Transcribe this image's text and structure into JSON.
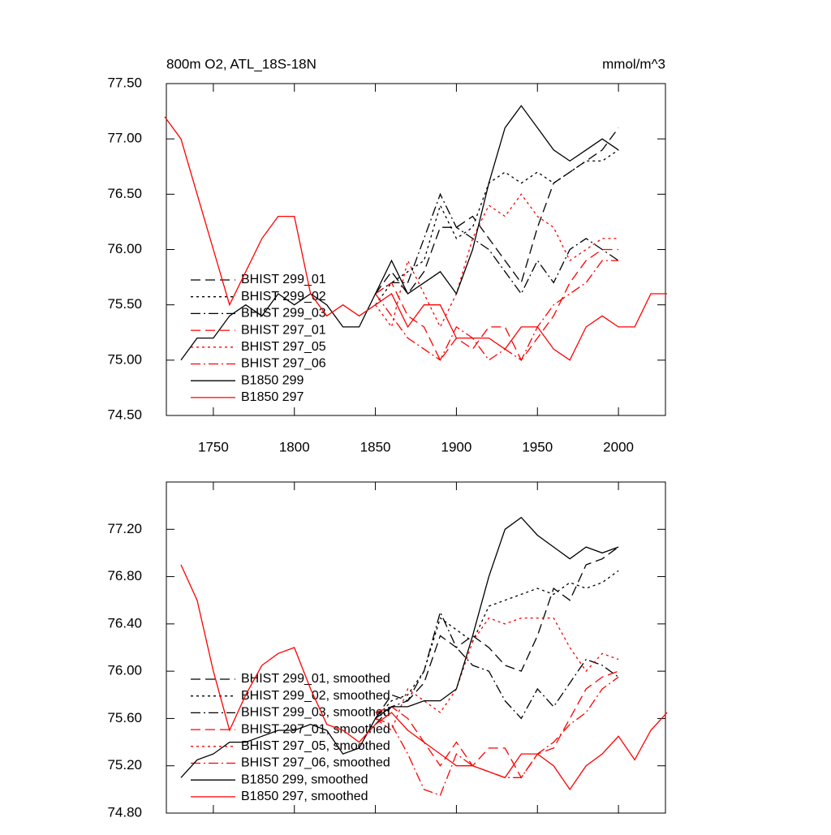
{
  "chart_data": [
    {
      "type": "line",
      "title": "800m O2, ATL_18S-18N",
      "units": "mmol/m^3",
      "x": [
        1720,
        1730,
        1740,
        1750,
        1760,
        1770,
        1780,
        1790,
        1800,
        1810,
        1820,
        1830,
        1840,
        1850,
        1860,
        1870,
        1880,
        1890,
        1900,
        1910,
        1920,
        1930,
        1940,
        1950,
        1960,
        1970,
        1980,
        1990,
        2000,
        2010,
        2020,
        2030
      ],
      "xlim": [
        1721,
        2029
      ],
      "xticks": [
        1750,
        1800,
        1850,
        1900,
        1950,
        2000
      ],
      "ylim": [
        74.5,
        77.5
      ],
      "yticks": [
        {
          "value": 74.5,
          "label": "74.50"
        },
        {
          "value": 75,
          "label": "75.00"
        },
        {
          "value": 75.5,
          "label": "75.50"
        },
        {
          "value": 76,
          "label": "76.00"
        },
        {
          "value": 76.5,
          "label": "76.50"
        },
        {
          "value": 77,
          "label": "77.00"
        },
        {
          "value": 77.5,
          "label": "77.50"
        }
      ],
      "series": [
        {
          "name": "BHIST 299_01",
          "color": "#000000",
          "style": "dashed",
          "values": [
            null,
            null,
            null,
            null,
            null,
            null,
            null,
            null,
            null,
            null,
            null,
            null,
            null,
            75.6,
            75.8,
            75.6,
            75.8,
            76.2,
            76.2,
            76.3,
            76.1,
            75.9,
            75.7,
            76.2,
            76.6,
            76.7,
            76.8,
            76.9,
            77.1,
            null,
            null,
            null
          ]
        },
        {
          "name": "BHIST 299_02",
          "color": "#000000",
          "style": "dotted",
          "values": [
            null,
            null,
            null,
            null,
            null,
            null,
            null,
            null,
            null,
            null,
            null,
            null,
            null,
            75.5,
            75.7,
            75.8,
            75.9,
            76.4,
            76.1,
            76.2,
            76.6,
            76.7,
            76.6,
            76.7,
            76.6,
            76.7,
            76.8,
            76.8,
            76.9,
            null,
            null,
            null
          ]
        },
        {
          "name": "BHIST 299_03",
          "color": "#000000",
          "style": "dashdot",
          "values": [
            null,
            null,
            null,
            null,
            null,
            null,
            null,
            null,
            null,
            null,
            null,
            null,
            null,
            75.6,
            75.7,
            75.7,
            76.1,
            76.5,
            76.2,
            76.1,
            76.0,
            75.8,
            75.6,
            75.9,
            75.7,
            76.0,
            76.1,
            76.0,
            75.9,
            null,
            null,
            null
          ]
        },
        {
          "name": "BHIST 297_01",
          "color": "#ff0000",
          "style": "dashed",
          "values": [
            null,
            null,
            null,
            null,
            null,
            null,
            null,
            null,
            null,
            null,
            null,
            null,
            null,
            75.6,
            75.7,
            75.4,
            75.3,
            75.0,
            75.2,
            75.1,
            75.3,
            75.3,
            75.0,
            75.2,
            75.4,
            75.7,
            75.9,
            76.0,
            76.0,
            null,
            null,
            null
          ]
        },
        {
          "name": "BHIST 297_05",
          "color": "#ff0000",
          "style": "dotted",
          "values": [
            null,
            null,
            null,
            null,
            null,
            null,
            null,
            null,
            null,
            null,
            null,
            null,
            null,
            75.5,
            75.3,
            75.9,
            75.6,
            75.3,
            75.6,
            76.1,
            76.4,
            76.3,
            76.5,
            76.3,
            76.2,
            75.9,
            76.0,
            76.1,
            76.1,
            null,
            null,
            null
          ]
        },
        {
          "name": "BHIST 297_06",
          "color": "#ff0000",
          "style": "dashdot",
          "values": [
            null,
            null,
            null,
            null,
            null,
            null,
            null,
            null,
            null,
            null,
            null,
            null,
            null,
            75.6,
            75.4,
            75.2,
            75.1,
            75.0,
            75.3,
            75.2,
            75.0,
            75.1,
            75.0,
            75.3,
            75.5,
            75.6,
            75.7,
            75.9,
            75.9,
            null,
            null,
            null
          ]
        },
        {
          "name": "B1850 299",
          "color": "#000000",
          "style": "solid",
          "values": [
            null,
            75.0,
            75.2,
            75.2,
            75.4,
            75.5,
            75.4,
            75.6,
            75.5,
            75.6,
            75.5,
            75.3,
            75.3,
            75.6,
            75.9,
            75.6,
            75.7,
            75.8,
            75.6,
            76.0,
            76.6,
            77.1,
            77.3,
            77.1,
            76.9,
            76.8,
            76.9,
            77.0,
            76.9,
            null,
            null,
            null
          ]
        },
        {
          "name": "B1850 297",
          "color": "#ff0000",
          "style": "solid",
          "values": [
            77.2,
            77.0,
            76.5,
            76.0,
            75.5,
            75.8,
            76.1,
            76.3,
            76.3,
            75.6,
            75.4,
            75.5,
            75.4,
            75.5,
            75.6,
            75.3,
            75.5,
            75.5,
            75.2,
            75.2,
            75.2,
            75.1,
            75.3,
            75.3,
            75.1,
            75.0,
            75.3,
            75.4,
            75.3,
            75.3,
            75.6,
            75.6
          ]
        }
      ]
    },
    {
      "type": "line",
      "x": [
        1720,
        1730,
        1740,
        1750,
        1760,
        1770,
        1780,
        1790,
        1800,
        1810,
        1820,
        1830,
        1840,
        1850,
        1860,
        1870,
        1880,
        1890,
        1900,
        1910,
        1920,
        1930,
        1940,
        1950,
        1960,
        1970,
        1980,
        1990,
        2000,
        2010,
        2020,
        2030
      ],
      "xlim": [
        1721,
        2029
      ],
      "xticks": [
        1750,
        1800,
        1850,
        1900,
        1950,
        2000
      ],
      "ylim": [
        74.8,
        77.6
      ],
      "yticks": [
        {
          "value": 74.8,
          "label": "74.80"
        },
        {
          "value": 75.2,
          "label": "75.20"
        },
        {
          "value": 75.6,
          "label": "75.60"
        },
        {
          "value": 76,
          "label": "76.00"
        },
        {
          "value": 76.4,
          "label": "76.40"
        },
        {
          "value": 76.8,
          "label": "76.80"
        },
        {
          "value": 77.2,
          "label": "77.20"
        }
      ],
      "series": [
        {
          "name": "BHIST 299_01, smoothed",
          "color": "#000000",
          "style": "dashed",
          "values": [
            null,
            null,
            null,
            null,
            null,
            null,
            null,
            null,
            null,
            null,
            null,
            null,
            null,
            75.6,
            75.8,
            75.75,
            75.9,
            76.3,
            76.2,
            76.3,
            76.2,
            76.05,
            76.0,
            76.3,
            76.7,
            76.6,
            76.9,
            76.95,
            77.05,
            null,
            null,
            null
          ]
        },
        {
          "name": "BHIST 299_02, smoothed",
          "color": "#000000",
          "style": "dotted",
          "values": [
            null,
            null,
            null,
            null,
            null,
            null,
            null,
            null,
            null,
            null,
            null,
            null,
            null,
            75.6,
            75.75,
            75.8,
            76.0,
            76.45,
            76.35,
            76.25,
            76.55,
            76.6,
            76.65,
            76.7,
            76.65,
            76.75,
            76.7,
            76.75,
            76.85,
            null,
            null,
            null
          ]
        },
        {
          "name": "BHIST 299_03, smoothed",
          "color": "#000000",
          "style": "dashdot",
          "values": [
            null,
            null,
            null,
            null,
            null,
            null,
            null,
            null,
            null,
            null,
            null,
            null,
            null,
            75.55,
            75.7,
            75.75,
            76.0,
            76.5,
            76.2,
            76.05,
            76.0,
            75.75,
            75.6,
            75.85,
            75.7,
            75.9,
            76.1,
            76.05,
            75.95,
            null,
            null,
            null
          ]
        },
        {
          "name": "BHIST 297_01, smoothed",
          "color": "#ff0000",
          "style": "dashed",
          "values": [
            null,
            null,
            null,
            null,
            null,
            null,
            null,
            null,
            null,
            null,
            null,
            null,
            null,
            75.65,
            75.7,
            75.6,
            75.4,
            75.2,
            75.4,
            75.2,
            75.35,
            75.35,
            75.1,
            75.3,
            75.35,
            75.6,
            75.85,
            75.95,
            76.0,
            null,
            null,
            null
          ]
        },
        {
          "name": "BHIST 297_05, smoothed",
          "color": "#ff0000",
          "style": "dotted",
          "values": [
            null,
            null,
            null,
            null,
            null,
            null,
            null,
            null,
            null,
            null,
            null,
            null,
            null,
            75.6,
            75.5,
            75.85,
            75.75,
            75.65,
            75.85,
            76.25,
            76.45,
            76.4,
            76.45,
            76.45,
            76.45,
            76.2,
            76.0,
            76.15,
            76.1,
            null,
            null,
            null
          ]
        },
        {
          "name": "BHIST 297_06, smoothed",
          "color": "#ff0000",
          "style": "dashdot",
          "values": [
            null,
            null,
            null,
            null,
            null,
            null,
            null,
            null,
            null,
            null,
            null,
            null,
            null,
            75.6,
            75.55,
            75.3,
            75.0,
            74.95,
            75.3,
            75.2,
            75.15,
            75.1,
            75.1,
            75.3,
            75.4,
            75.55,
            75.65,
            75.85,
            75.95,
            null,
            null,
            null
          ]
        },
        {
          "name": "B1850 299, smoothed",
          "color": "#000000",
          "style": "solid",
          "values": [
            null,
            75.1,
            75.25,
            75.3,
            75.4,
            75.4,
            75.45,
            75.5,
            75.5,
            75.55,
            75.5,
            75.3,
            75.35,
            75.6,
            75.7,
            75.7,
            75.75,
            75.75,
            75.85,
            76.3,
            76.8,
            77.2,
            77.3,
            77.15,
            77.05,
            76.95,
            77.05,
            77.0,
            77.05,
            null,
            null,
            null
          ]
        },
        {
          "name": "B1850 297, smoothed",
          "color": "#ff0000",
          "style": "solid",
          "values": [
            null,
            76.9,
            76.6,
            76.0,
            75.5,
            75.8,
            76.05,
            76.15,
            76.2,
            75.85,
            75.55,
            75.5,
            75.4,
            75.55,
            75.65,
            75.5,
            75.4,
            75.3,
            75.2,
            75.2,
            75.15,
            75.1,
            75.3,
            75.3,
            75.2,
            75.0,
            75.2,
            75.3,
            75.45,
            75.25,
            75.5,
            75.65
          ]
        }
      ]
    }
  ]
}
